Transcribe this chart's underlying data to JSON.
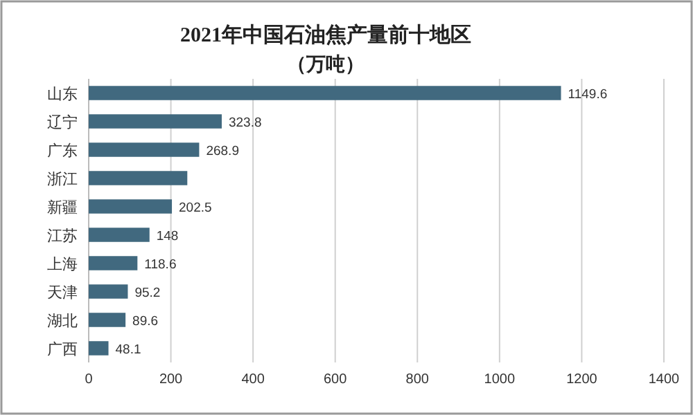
{
  "chart_data": {
    "type": "bar",
    "orientation": "horizontal",
    "title": "2021年中国石油焦产量前十地区",
    "subtitle": "（万吨）",
    "categories": [
      "山东",
      "辽宁",
      "广东",
      "浙江",
      "新疆",
      "江苏",
      "上海",
      "天津",
      "湖北",
      "广西"
    ],
    "values": [
      1149.6,
      323.8,
      268.9,
      240,
      202.5,
      148,
      118.6,
      95.2,
      89.6,
      48.1
    ],
    "value_labels": [
      "1149.6",
      "323.8",
      "268.9",
      null,
      "202.5",
      "148",
      "118.6",
      "95.2",
      "89.6",
      "48.1"
    ],
    "color": "#41697f",
    "xlim": [
      0,
      1400
    ],
    "xticks": [
      0,
      200,
      400,
      600,
      800,
      1000,
      1200,
      1400
    ],
    "grid": "x"
  }
}
